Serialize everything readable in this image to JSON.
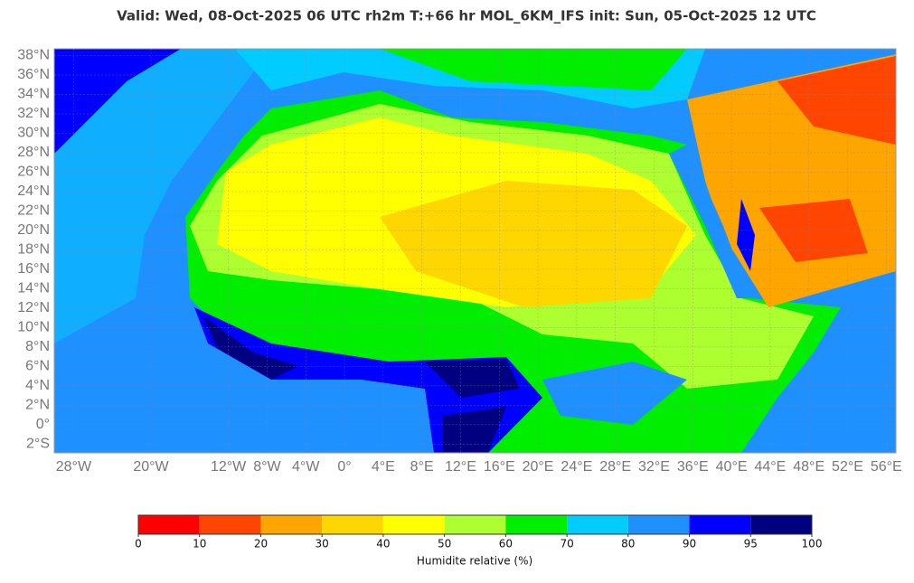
{
  "title": "Valid: Wed, 08-Oct-2025   06 UTC   rh2m   T:+66 hr   MOL_6KM_IFS      init: Sun, 05-Oct-2025   12 UTC",
  "map": {
    "lon_range": [
      -30,
      57
    ],
    "lat_range": [
      -2.9,
      38.7
    ],
    "lat_ticks": [
      {
        "value": 38,
        "label": "38°N"
      },
      {
        "value": 36,
        "label": "36°N"
      },
      {
        "value": 34,
        "label": "34°N"
      },
      {
        "value": 32,
        "label": "32°N"
      },
      {
        "value": 30,
        "label": "30°N"
      },
      {
        "value": 28,
        "label": "28°N"
      },
      {
        "value": 26,
        "label": "26°N"
      },
      {
        "value": 24,
        "label": "24°N"
      },
      {
        "value": 22,
        "label": "22°N"
      },
      {
        "value": 20,
        "label": "20°N"
      },
      {
        "value": 18,
        "label": "18°N"
      },
      {
        "value": 16,
        "label": "16°N"
      },
      {
        "value": 14,
        "label": "14°N"
      },
      {
        "value": 12,
        "label": "12°N"
      },
      {
        "value": 10,
        "label": "10°N"
      },
      {
        "value": 8,
        "label": "8°N"
      },
      {
        "value": 6,
        "label": "6°N"
      },
      {
        "value": 4,
        "label": "4°N"
      },
      {
        "value": 2,
        "label": "2°N"
      },
      {
        "value": 0,
        "label": "0°"
      },
      {
        "value": -2,
        "label": "2°S"
      }
    ],
    "lon_ticks": [
      {
        "value": -28,
        "label": "28°W"
      },
      {
        "value": -20,
        "label": "20°W"
      },
      {
        "value": -12,
        "label": "12°W"
      },
      {
        "value": -8,
        "label": "8°W"
      },
      {
        "value": -4,
        "label": "4°W"
      },
      {
        "value": 0,
        "label": "0°"
      },
      {
        "value": 4,
        "label": "4°E"
      },
      {
        "value": 8,
        "label": "8°E"
      },
      {
        "value": 12,
        "label": "12°E"
      },
      {
        "value": 16,
        "label": "16°E"
      },
      {
        "value": 20,
        "label": "20°E"
      },
      {
        "value": 24,
        "label": "24°E"
      },
      {
        "value": 28,
        "label": "28°E"
      },
      {
        "value": 32,
        "label": "32°E"
      },
      {
        "value": 36,
        "label": "36°E"
      },
      {
        "value": 40,
        "label": "40°E"
      },
      {
        "value": 44,
        "label": "44°E"
      },
      {
        "value": 48,
        "label": "48°E"
      },
      {
        "value": 52,
        "label": "52°E"
      },
      {
        "value": 56,
        "label": "56°E"
      }
    ]
  },
  "colorbar": {
    "bounds": [
      0,
      10,
      20,
      30,
      40,
      50,
      60,
      70,
      80,
      90,
      95,
      100
    ],
    "colors": [
      "#ff0000",
      "#ff4500",
      "#ffa500",
      "#ffd700",
      "#ffff00",
      "#adff2f",
      "#00ee00",
      "#00ccff",
      "#1e90ff",
      "#0000ff",
      "#000080"
    ],
    "label": "Humidite relative (%)"
  }
}
